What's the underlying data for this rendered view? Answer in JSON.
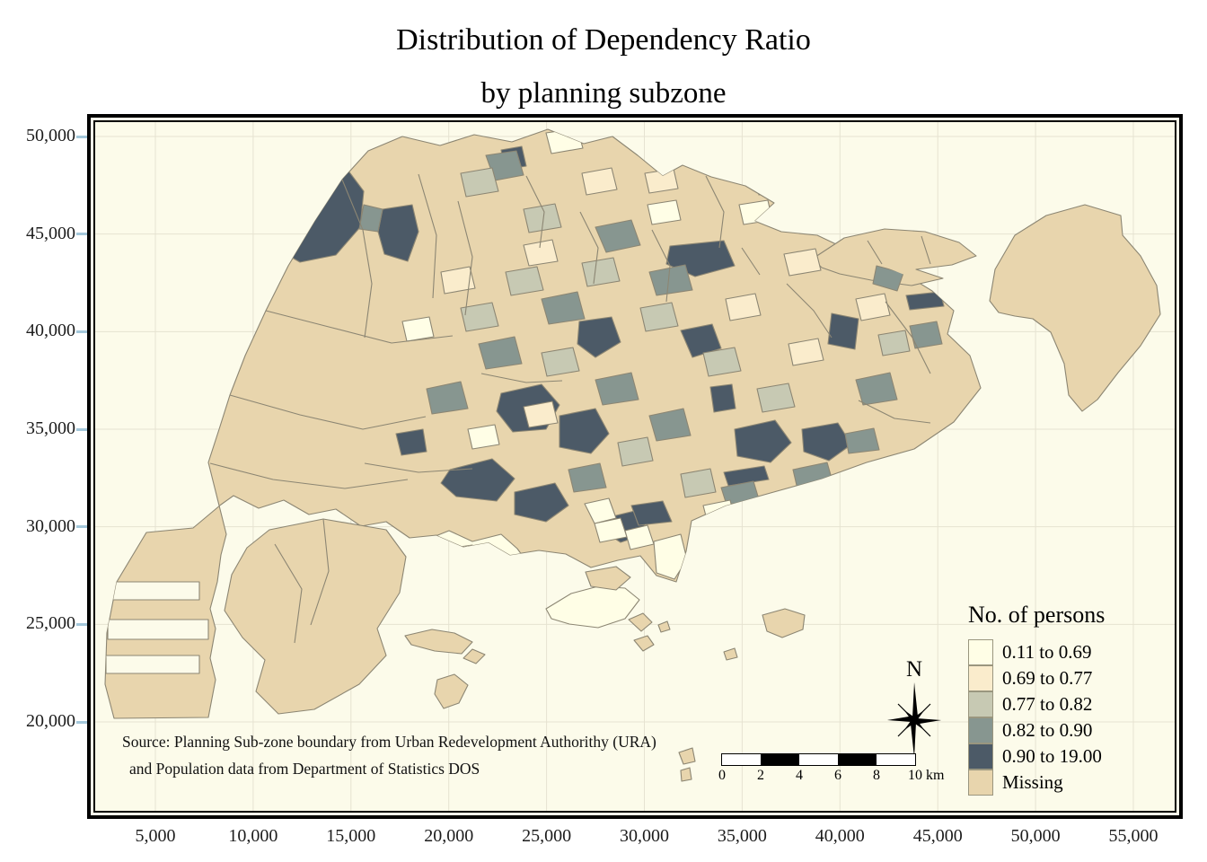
{
  "title": {
    "line1": "Distribution of Dependency Ratio",
    "line2": "by planning subzone"
  },
  "map": {
    "y_axis_ticks": [
      "50,000",
      "45,000",
      "40,000",
      "35,000",
      "30,000",
      "25,000",
      "20,000"
    ],
    "x_axis_ticks": [
      "5,000",
      "10,000",
      "15,000",
      "20,000",
      "25,000",
      "30,000",
      "35,000",
      "40,000",
      "45,000",
      "50,000",
      "55,000"
    ],
    "legend": {
      "title": "No. of persons",
      "classes": [
        {
          "label": "0.11 to 0.69",
          "color": "#FFFEE6"
        },
        {
          "label": "0.69 to 0.77",
          "color": "#FAECCC"
        },
        {
          "label": "0.77 to 0.82",
          "color": "#C7C9B3"
        },
        {
          "label": "0.82 to 0.90",
          "color": "#879690"
        },
        {
          "label": "0.90 to 19.00",
          "color": "#4C5A67"
        },
        {
          "label": "Missing",
          "color": "#E8D5AD"
        }
      ]
    },
    "north_arrow_label": "N",
    "scale_bar": {
      "tick_labels": [
        "0",
        "2",
        "4",
        "6",
        "8",
        "10"
      ],
      "unit": "km"
    },
    "source_line1": "Source: Planning Sub-zone boundary from Urban Redevelopment Authorithy (URA)",
    "source_line2": "and Population data from Department of Statistics DOS",
    "colors": {
      "water": "#FCFBEA",
      "grid": "#E6E3D1",
      "border": "#8C8673",
      "swatch_border": "#9A967F",
      "axis_tick": "#A3C7DA"
    }
  }
}
